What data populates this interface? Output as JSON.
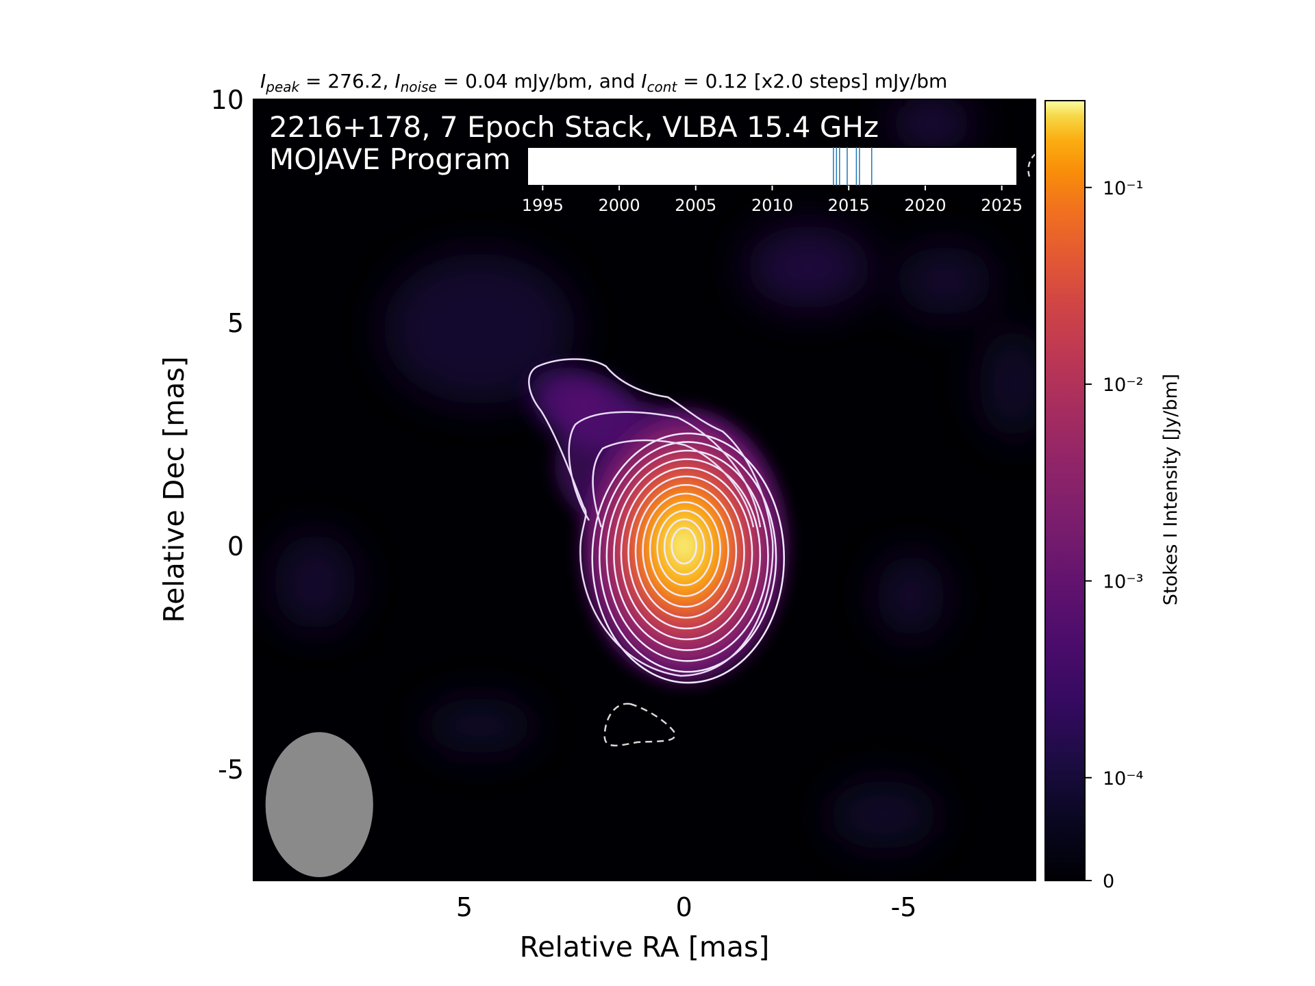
{
  "chart_data": {
    "type": "heatmap",
    "title_parts": {
      "peak_sym": "I",
      "peak_sub": "peak",
      "peak_val": " = 276.2, ",
      "noise_sym": "I",
      "noise_sub": "noise",
      "noise_val": " = 0.04 mJy/bm, and ",
      "cont_sym": "I",
      "cont_sub": "cont",
      "cont_val": " = 0.12 [x2.0 steps] mJy/bm"
    },
    "annotation_line1": "2216+178, 7 Epoch Stack, VLBA 15.4 GHz",
    "annotation_line2": "MOJAVE Program",
    "xlabel": "Relative RA [mas]",
    "ylabel": "Relative Dec [mas]",
    "xlim": [
      9.8,
      -8
    ],
    "ylim": [
      -7.5,
      10
    ],
    "x_ticks": [
      5,
      0,
      -5
    ],
    "x_tick_labels": [
      "5",
      "0",
      "-5"
    ],
    "y_ticks": [
      10,
      5,
      0,
      -5
    ],
    "y_tick_labels": [
      "10",
      "5",
      "0",
      "-5"
    ],
    "colorbar": {
      "label": "Stokes I Intensity [Jy/bm]",
      "tick_labels": [
        "10⁻¹",
        "10⁻²",
        "10⁻³",
        "10⁻⁴",
        "0"
      ],
      "tick_values": [
        0.1,
        0.01,
        0.001,
        0.0001,
        0
      ],
      "max": 0.2762,
      "colormap": "inferno"
    },
    "peak_position": [
      0,
      0
    ],
    "contour_base_mjy": 0.12,
    "contour_factor": 2.0,
    "contour_count": 12,
    "beam": {
      "ra": 8.3,
      "dec": -5.8,
      "major": 3.3,
      "minor": 2.45
    },
    "timeline": {
      "range": [
        1994,
        2026
      ],
      "tick_labels": [
        "1995",
        "2000",
        "2005",
        "2010",
        "2015",
        "2020",
        "2025"
      ],
      "tick_years": [
        1995,
        2000,
        2005,
        2010,
        2015,
        2020,
        2025
      ],
      "epochs": [
        2014.0,
        2014.2,
        2014.4,
        2014.9,
        2015.5,
        2015.7,
        2016.5
      ]
    },
    "colors": {
      "background": "#000004",
      "contour": "#f2eaff",
      "epoch_line": "#1f77b4",
      "beam": "#8a8a8a"
    }
  }
}
